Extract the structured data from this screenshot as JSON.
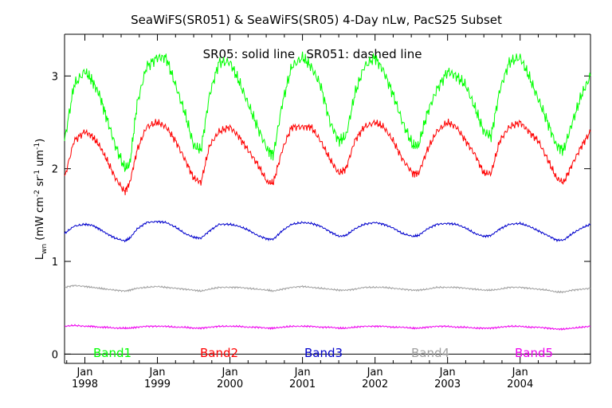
{
  "chart_data": {
    "type": "line",
    "title": "SeaWiFS(SR051) & SeaWiFS(SR05) 4-Day nLw, PacS25 Subset",
    "annotation": "SR05: solid line   SR051: dashed line",
    "ylabel": {
      "main": "L",
      "sub": "wn",
      "units_open": " (mW cm",
      "sup1": "-2",
      "units_mid1": " sr",
      "sup2": "-1",
      "units_mid2": " um",
      "sup3": "-1",
      "units_close": ")"
    },
    "xlabel": "",
    "xlim": [
      1997.72,
      2004.97
    ],
    "ylim": [
      -0.1,
      3.45
    ],
    "grid": false,
    "y_ticks": [
      {
        "value": 0,
        "label": "0"
      },
      {
        "value": 1,
        "label": "1"
      },
      {
        "value": 2,
        "label": "2"
      },
      {
        "value": 3,
        "label": "3"
      }
    ],
    "x_ticks": [
      {
        "value": 1998.0,
        "month": "Jan",
        "year": "1998"
      },
      {
        "value": 1999.0,
        "month": "Jan",
        "year": "1999"
      },
      {
        "value": 2000.0,
        "month": "Jan",
        "year": "2000"
      },
      {
        "value": 2001.0,
        "month": "Jan",
        "year": "2001"
      },
      {
        "value": 2002.0,
        "month": "Jan",
        "year": "2002"
      },
      {
        "value": 2003.0,
        "month": "Jan",
        "year": "2003"
      },
      {
        "value": 2004.0,
        "month": "Jan",
        "year": "2004"
      }
    ],
    "series": [
      {
        "name": "Band1",
        "color": "#00ff00",
        "x": [
          1997.72,
          1997.85,
          1998.0,
          1998.1,
          1998.2,
          1998.3,
          1998.42,
          1998.55,
          1998.62,
          1998.72,
          1998.85,
          1999.0,
          1999.12,
          1999.25,
          1999.38,
          1999.5,
          1999.6,
          1999.72,
          1999.85,
          2000.0,
          2000.12,
          2000.25,
          2000.38,
          2000.52,
          2000.6,
          2000.72,
          2000.85,
          2001.0,
          2001.12,
          2001.25,
          2001.38,
          2001.5,
          2001.6,
          2001.72,
          2001.85,
          2002.0,
          2002.12,
          2002.25,
          2002.38,
          2002.52,
          2002.6,
          2002.72,
          2002.85,
          2003.0,
          2003.12,
          2003.25,
          2003.38,
          2003.5,
          2003.6,
          2003.72,
          2003.85,
          2004.0,
          2004.12,
          2004.25,
          2004.38,
          2004.5,
          2004.6,
          2004.72,
          2004.85,
          2004.97
        ],
        "y": [
          2.3,
          2.9,
          3.05,
          2.95,
          2.8,
          2.55,
          2.25,
          2.0,
          2.05,
          2.7,
          3.1,
          3.2,
          3.2,
          2.9,
          2.6,
          2.25,
          2.2,
          2.8,
          3.15,
          3.15,
          2.95,
          2.7,
          2.45,
          2.2,
          2.15,
          2.7,
          3.1,
          3.2,
          3.1,
          2.9,
          2.5,
          2.3,
          2.35,
          2.8,
          3.1,
          3.2,
          3.05,
          2.8,
          2.5,
          2.25,
          2.25,
          2.6,
          2.85,
          3.05,
          3.0,
          2.9,
          2.65,
          2.4,
          2.35,
          2.85,
          3.15,
          3.2,
          3.0,
          2.75,
          2.5,
          2.25,
          2.2,
          2.5,
          2.8,
          3.0
        ]
      },
      {
        "name": "Band2",
        "color": "#ff0000",
        "x": [
          1997.72,
          1997.85,
          1998.0,
          1998.1,
          1998.2,
          1998.3,
          1998.42,
          1998.55,
          1998.62,
          1998.72,
          1998.85,
          1999.0,
          1999.12,
          1999.25,
          1999.38,
          1999.5,
          1999.6,
          1999.72,
          1999.85,
          2000.0,
          2000.12,
          2000.25,
          2000.38,
          2000.52,
          2000.6,
          2000.72,
          2000.85,
          2001.0,
          2001.12,
          2001.25,
          2001.38,
          2001.5,
          2001.6,
          2001.72,
          2001.85,
          2002.0,
          2002.12,
          2002.25,
          2002.38,
          2002.52,
          2002.6,
          2002.72,
          2002.85,
          2003.0,
          2003.12,
          2003.25,
          2003.38,
          2003.5,
          2003.6,
          2003.72,
          2003.85,
          2004.0,
          2004.12,
          2004.25,
          2004.38,
          2004.5,
          2004.6,
          2004.72,
          2004.85,
          2004.97
        ],
        "y": [
          1.9,
          2.3,
          2.4,
          2.35,
          2.25,
          2.1,
          1.9,
          1.75,
          1.85,
          2.2,
          2.45,
          2.5,
          2.45,
          2.3,
          2.1,
          1.9,
          1.85,
          2.25,
          2.4,
          2.45,
          2.35,
          2.2,
          2.05,
          1.85,
          1.85,
          2.2,
          2.45,
          2.45,
          2.45,
          2.3,
          2.1,
          1.95,
          2.0,
          2.3,
          2.45,
          2.5,
          2.45,
          2.3,
          2.1,
          1.95,
          1.95,
          2.2,
          2.4,
          2.5,
          2.45,
          2.3,
          2.15,
          1.95,
          1.95,
          2.3,
          2.45,
          2.5,
          2.4,
          2.3,
          2.1,
          1.9,
          1.85,
          2.05,
          2.25,
          2.4
        ]
      },
      {
        "name": "Band3",
        "color": "#0000cc",
        "x": [
          1997.72,
          1997.85,
          1998.0,
          1998.1,
          1998.2,
          1998.3,
          1998.42,
          1998.55,
          1998.62,
          1998.72,
          1998.85,
          1999.0,
          1999.12,
          1999.25,
          1999.38,
          1999.5,
          1999.6,
          1999.72,
          1999.85,
          2000.0,
          2000.12,
          2000.25,
          2000.38,
          2000.52,
          2000.6,
          2000.72,
          2000.85,
          2001.0,
          2001.12,
          2001.25,
          2001.38,
          2001.5,
          2001.6,
          2001.72,
          2001.85,
          2002.0,
          2002.12,
          2002.25,
          2002.38,
          2002.52,
          2002.6,
          2002.72,
          2002.85,
          2003.0,
          2003.12,
          2003.25,
          2003.38,
          2003.5,
          2003.6,
          2003.72,
          2003.85,
          2004.0,
          2004.12,
          2004.25,
          2004.38,
          2004.5,
          2004.6,
          2004.72,
          2004.85,
          2004.97
        ],
        "y": [
          1.3,
          1.38,
          1.4,
          1.39,
          1.35,
          1.3,
          1.25,
          1.22,
          1.25,
          1.35,
          1.42,
          1.43,
          1.42,
          1.37,
          1.3,
          1.26,
          1.25,
          1.33,
          1.4,
          1.4,
          1.38,
          1.34,
          1.28,
          1.24,
          1.24,
          1.33,
          1.4,
          1.42,
          1.41,
          1.38,
          1.32,
          1.27,
          1.28,
          1.35,
          1.4,
          1.42,
          1.4,
          1.36,
          1.3,
          1.27,
          1.28,
          1.35,
          1.4,
          1.41,
          1.4,
          1.36,
          1.3,
          1.27,
          1.28,
          1.35,
          1.4,
          1.41,
          1.38,
          1.33,
          1.28,
          1.23,
          1.23,
          1.3,
          1.36,
          1.4
        ]
      },
      {
        "name": "Band4",
        "color": "#a0a0a0",
        "x": [
          1997.72,
          1997.85,
          1998.0,
          1998.1,
          1998.2,
          1998.3,
          1998.42,
          1998.55,
          1998.62,
          1998.72,
          1998.85,
          1999.0,
          1999.12,
          1999.25,
          1999.38,
          1999.5,
          1999.6,
          1999.72,
          1999.85,
          2000.0,
          2000.12,
          2000.25,
          2000.38,
          2000.52,
          2000.6,
          2000.72,
          2000.85,
          2001.0,
          2001.12,
          2001.25,
          2001.38,
          2001.5,
          2001.6,
          2001.72,
          2001.85,
          2002.0,
          2002.12,
          2002.25,
          2002.38,
          2002.52,
          2002.6,
          2002.72,
          2002.85,
          2003.0,
          2003.12,
          2003.25,
          2003.38,
          2003.5,
          2003.6,
          2003.72,
          2003.85,
          2004.0,
          2004.12,
          2004.25,
          2004.38,
          2004.5,
          2004.6,
          2004.72,
          2004.85,
          2004.97
        ],
        "y": [
          0.72,
          0.74,
          0.73,
          0.72,
          0.71,
          0.7,
          0.69,
          0.68,
          0.69,
          0.71,
          0.72,
          0.73,
          0.72,
          0.71,
          0.7,
          0.69,
          0.68,
          0.7,
          0.72,
          0.72,
          0.72,
          0.71,
          0.7,
          0.69,
          0.68,
          0.7,
          0.72,
          0.73,
          0.72,
          0.71,
          0.7,
          0.69,
          0.69,
          0.7,
          0.72,
          0.72,
          0.72,
          0.71,
          0.7,
          0.69,
          0.69,
          0.7,
          0.72,
          0.72,
          0.72,
          0.71,
          0.7,
          0.69,
          0.69,
          0.7,
          0.72,
          0.72,
          0.71,
          0.7,
          0.69,
          0.67,
          0.67,
          0.69,
          0.7,
          0.71
        ]
      },
      {
        "name": "Band5",
        "color": "#ee00ee",
        "x": [
          1997.72,
          1997.85,
          1998.0,
          1998.1,
          1998.2,
          1998.3,
          1998.42,
          1998.55,
          1998.62,
          1998.72,
          1998.85,
          1999.0,
          1999.12,
          1999.25,
          1999.38,
          1999.5,
          1999.6,
          1999.72,
          1999.85,
          2000.0,
          2000.12,
          2000.25,
          2000.38,
          2000.52,
          2000.6,
          2000.72,
          2000.85,
          2001.0,
          2001.12,
          2001.25,
          2001.38,
          2001.5,
          2001.6,
          2001.72,
          2001.85,
          2002.0,
          2002.12,
          2002.25,
          2002.38,
          2002.52,
          2002.6,
          2002.72,
          2002.85,
          2003.0,
          2003.12,
          2003.25,
          2003.38,
          2003.5,
          2003.6,
          2003.72,
          2003.85,
          2004.0,
          2004.12,
          2004.25,
          2004.38,
          2004.5,
          2004.6,
          2004.72,
          2004.85,
          2004.97
        ],
        "y": [
          0.3,
          0.31,
          0.3,
          0.3,
          0.29,
          0.29,
          0.28,
          0.28,
          0.28,
          0.29,
          0.3,
          0.3,
          0.3,
          0.29,
          0.29,
          0.28,
          0.28,
          0.29,
          0.3,
          0.3,
          0.3,
          0.29,
          0.29,
          0.28,
          0.28,
          0.29,
          0.3,
          0.3,
          0.3,
          0.29,
          0.29,
          0.28,
          0.28,
          0.29,
          0.3,
          0.3,
          0.3,
          0.29,
          0.29,
          0.28,
          0.28,
          0.29,
          0.3,
          0.3,
          0.29,
          0.29,
          0.28,
          0.28,
          0.28,
          0.29,
          0.3,
          0.3,
          0.29,
          0.29,
          0.28,
          0.27,
          0.27,
          0.28,
          0.29,
          0.3
        ]
      }
    ]
  }
}
